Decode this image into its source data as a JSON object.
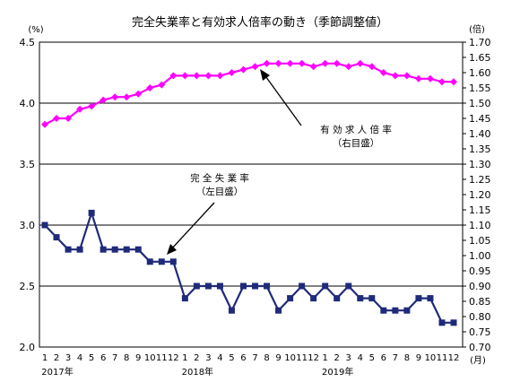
{
  "chart_data": {
    "type": "line",
    "title": "完全失業率と有効求人倍率の動き（季節調整値）",
    "y_left_unit": "(%)",
    "y_right_unit": "(倍)",
    "x_unit": "(月)",
    "y_left_range": [
      2.0,
      4.5
    ],
    "y_left_ticks": [
      "2.0",
      "2.5",
      "3.0",
      "3.5",
      "4.0",
      "4.5"
    ],
    "y_right_range": [
      0.7,
      1.7
    ],
    "y_right_ticks": [
      "0.70",
      "0.75",
      "0.80",
      "0.85",
      "0.90",
      "0.95",
      "1.00",
      "1.05",
      "1.10",
      "1.15",
      "1.20",
      "1.25",
      "1.30",
      "1.35",
      "1.40",
      "1.45",
      "1.50",
      "1.55",
      "1.60",
      "1.65",
      "1.70"
    ],
    "x_month_labels": [
      "1",
      "2",
      "3",
      "4",
      "5",
      "6",
      "7",
      "8",
      "9",
      "10",
      "11",
      "12",
      "1",
      "2",
      "3",
      "4",
      "5",
      "6",
      "7",
      "8",
      "9",
      "10",
      "11",
      "12",
      "1",
      "2",
      "3",
      "4",
      "5",
      "6",
      "7",
      "8",
      "9",
      "10",
      "11",
      "12"
    ],
    "x_year_labels": [
      "2017年",
      "2018年",
      "2019年"
    ],
    "grid": "horizontal",
    "series": [
      {
        "name": "完全失業率",
        "axis": "left",
        "color": "#1f2a7a",
        "values": [
          3.0,
          2.9,
          2.8,
          2.8,
          3.1,
          2.8,
          2.8,
          2.8,
          2.8,
          2.7,
          2.7,
          2.7,
          2.4,
          2.5,
          2.5,
          2.5,
          2.3,
          2.5,
          2.5,
          2.5,
          2.3,
          2.4,
          2.5,
          2.4,
          2.5,
          2.4,
          2.5,
          2.4,
          2.4,
          2.3,
          2.3,
          2.3,
          2.4,
          2.4,
          2.2,
          2.2
        ]
      },
      {
        "name": "有効求人倍率",
        "axis": "right",
        "color": "#ff00ff",
        "values": [
          1.43,
          1.45,
          1.45,
          1.48,
          1.49,
          1.51,
          1.52,
          1.52,
          1.53,
          1.55,
          1.56,
          1.59,
          1.59,
          1.59,
          1.59,
          1.59,
          1.6,
          1.61,
          1.62,
          1.63,
          1.63,
          1.63,
          1.63,
          1.62,
          1.63,
          1.63,
          1.62,
          1.63,
          1.62,
          1.6,
          1.59,
          1.59,
          1.58,
          1.58,
          1.57,
          1.57
        ]
      }
    ],
    "annotations": [
      {
        "lines": [
          "有 効 求 人 倍 率",
          "（右目盛）"
        ],
        "target_series": 1
      },
      {
        "lines": [
          "完 全 失 業 率",
          "（左目盛）"
        ],
        "target_series": 0
      }
    ]
  }
}
